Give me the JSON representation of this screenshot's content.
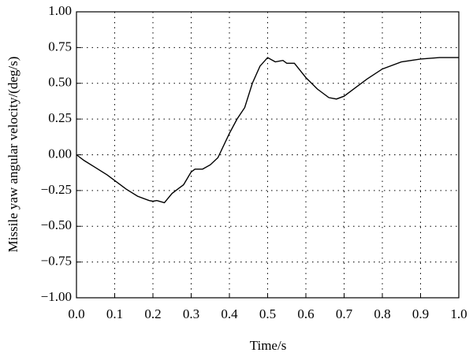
{
  "chart_data": {
    "type": "line",
    "xlabel": "Time/s",
    "ylabel": "Missile yaw angular velocity/(deg/s)",
    "x": [
      0,
      0.02,
      0.05,
      0.08,
      0.1,
      0.13,
      0.16,
      0.19,
      0.2,
      0.21,
      0.23,
      0.25,
      0.27,
      0.28,
      0.3,
      0.31,
      0.33,
      0.35,
      0.37,
      0.4,
      0.42,
      0.44,
      0.46,
      0.48,
      0.5,
      0.52,
      0.54,
      0.55,
      0.57,
      0.6,
      0.63,
      0.66,
      0.68,
      0.7,
      0.73,
      0.76,
      0.8,
      0.85,
      0.9,
      0.95,
      1.0
    ],
    "values": [
      0,
      -0.04,
      -0.09,
      -0.14,
      -0.18,
      -0.24,
      -0.29,
      -0.32,
      -0.325,
      -0.32,
      -0.335,
      -0.27,
      -0.23,
      -0.21,
      -0.12,
      -0.1,
      -0.1,
      -0.07,
      -0.02,
      0.15,
      0.25,
      0.33,
      0.5,
      0.62,
      0.68,
      0.65,
      0.66,
      0.64,
      0.64,
      0.54,
      0.46,
      0.4,
      0.39,
      0.41,
      0.47,
      0.53,
      0.6,
      0.65,
      0.67,
      0.68,
      0.68
    ],
    "color": "#000000",
    "xlim": [
      0,
      1
    ],
    "ylim": [
      -1,
      1
    ],
    "xticks": [
      {
        "value": 0,
        "label": "0.0"
      },
      0.1,
      0.2,
      0.3,
      0.4,
      0.5,
      0.6,
      0.7,
      0.8,
      0.9,
      {
        "value": 1,
        "label": "1.0"
      }
    ],
    "yticks": [
      {
        "value": -1,
        "label": "−1.00"
      },
      {
        "value": -0.75,
        "label": "−0.75"
      },
      {
        "value": -0.5,
        "label": "−0.50"
      },
      {
        "value": -0.25,
        "label": "−0.25"
      },
      {
        "value": 0,
        "label": "0.00"
      },
      {
        "value": 0.25,
        "label": "0.25"
      },
      {
        "value": 0.5,
        "label": "0.50"
      },
      {
        "value": 0.75,
        "label": "0.75"
      },
      {
        "value": 1,
        "label": "1.00"
      }
    ],
    "grid": true
  }
}
